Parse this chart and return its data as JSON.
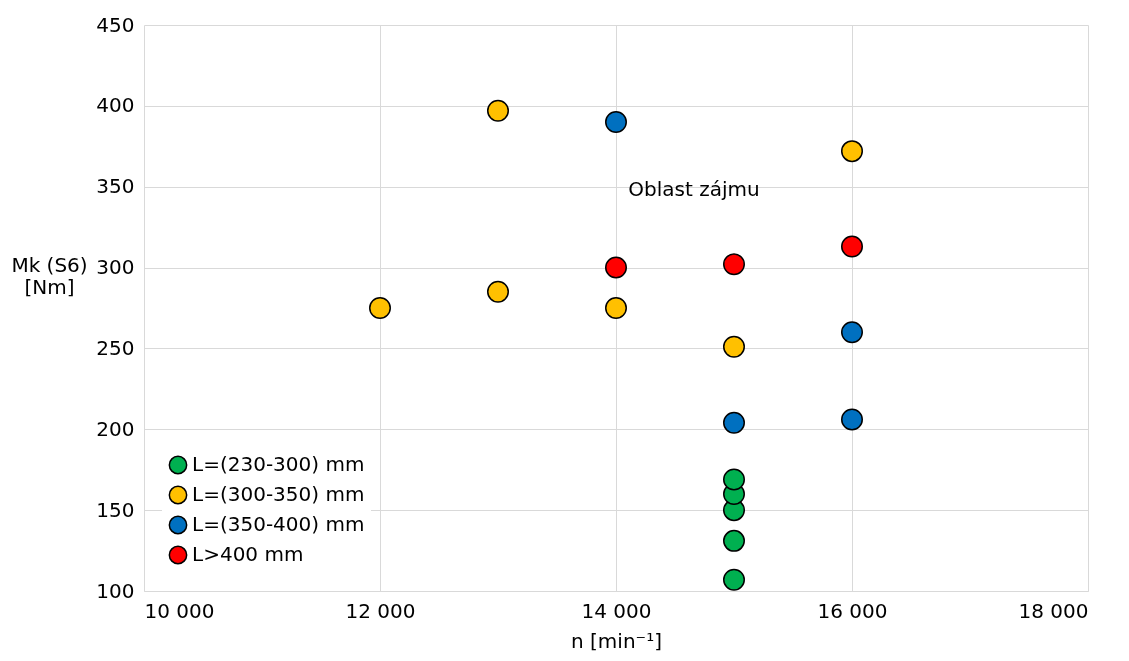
{
  "chart_data": {
    "type": "scatter",
    "xlabel": "n [min⁻¹]",
    "ylabel": "Mk (S6)\n[Nm]",
    "xlim": [
      10000,
      18000
    ],
    "xticks": [
      {
        "value": 10000,
        "label": "10 000"
      },
      {
        "value": 12000,
        "label": "12 000"
      },
      {
        "value": 14000,
        "label": "14 000"
      },
      {
        "value": 16000,
        "label": "16 000"
      },
      {
        "value": 18000,
        "label": "18 000"
      }
    ],
    "ylim": [
      100,
      450
    ],
    "yticks": [
      100,
      150,
      200,
      250,
      300,
      350,
      400,
      450
    ],
    "grid": true,
    "legend": "bottom left",
    "marker": "circle",
    "annotations": [
      "Oblast zájmu"
    ],
    "series": [
      {
        "name": "L=(230-300) mm",
        "color": "#00b050",
        "x": [
          15000,
          15000,
          15000,
          15000,
          15000
        ],
        "values": [
          107,
          131,
          150,
          160,
          169
        ]
      },
      {
        "name": "L=(300-350) mm",
        "color": "#ffc000",
        "x": [
          13000,
          16000,
          12000,
          13000,
          14000,
          15000
        ],
        "values": [
          397,
          372,
          275,
          285,
          275,
          251
        ]
      },
      {
        "name": "L=(350-400) mm",
        "color": "#0070c0",
        "x": [
          14000,
          16000,
          15000,
          16000
        ],
        "values": [
          390,
          260,
          204,
          206
        ]
      },
      {
        "name": "L>400 mm",
        "color": "#ff0000",
        "x": [
          14000,
          15000,
          16000
        ],
        "values": [
          300,
          302,
          313
        ]
      }
    ]
  }
}
